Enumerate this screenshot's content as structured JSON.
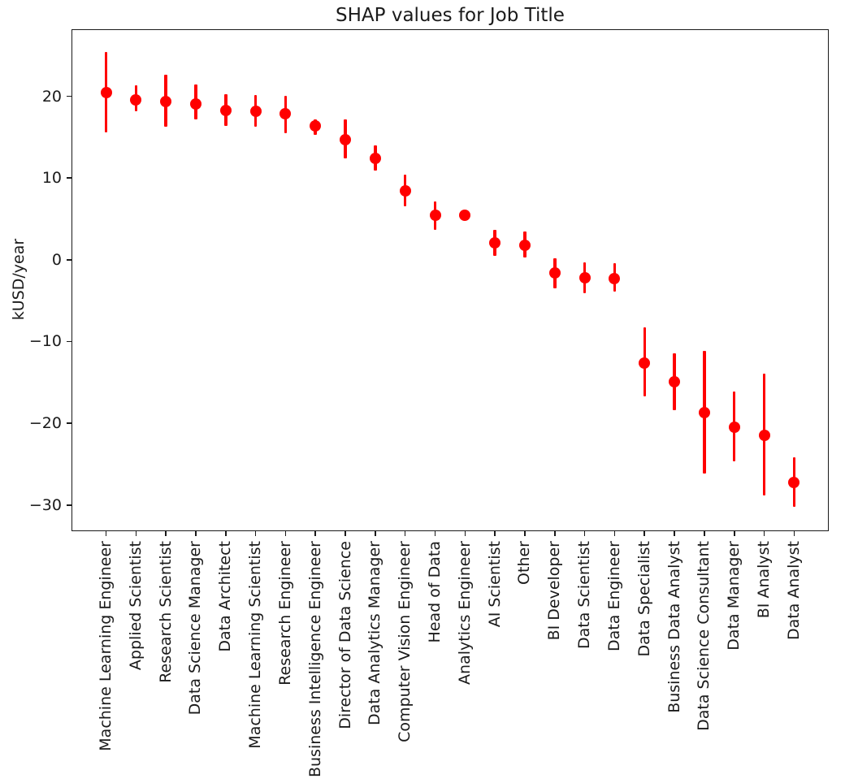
{
  "figure": {
    "background": "#ffffff",
    "axis_color": "#1a1a1a",
    "text_color": "#1a1a1a"
  },
  "chart_data": {
    "type": "scatter",
    "subtype": "errorbar-point-plot",
    "title": "SHAP values for Job Title",
    "xlabel": "",
    "ylabel": "kUSD/year",
    "grid": false,
    "legend_position": "none",
    "marker_color": "#ff0000",
    "marker_shape": "circle",
    "ylim": [
      -33.2,
      28.2
    ],
    "yticks": [
      20,
      10,
      0,
      -10,
      -20,
      -30
    ],
    "ytick_labels": [
      "20",
      "10",
      "0",
      "−10",
      "−20",
      "−30"
    ],
    "categories": [
      "Machine Learning Engineer",
      "Applied Scientist",
      "Research Scientist",
      "Data Science Manager",
      "Data Architect",
      "Machine Learning Scientist",
      "Research Engineer",
      "Business Intelligence Engineer",
      "Director of Data Science",
      "Data Analytics Manager",
      "Computer Vision Engineer",
      "Head of Data",
      "Analytics Engineer",
      "AI Scientist",
      "Other",
      "BI Developer",
      "Data Scientist",
      "Data Engineer",
      "Data Specialist",
      "Business Data Analyst",
      "Data Science Consultant",
      "Data Manager",
      "BI Analyst",
      "Data Analyst"
    ],
    "series": [
      {
        "name": "SHAP value (kUSD/year)",
        "values": [
          20.5,
          19.6,
          19.4,
          19.1,
          18.3,
          18.2,
          17.9,
          16.4,
          14.7,
          12.4,
          8.4,
          5.4,
          5.4,
          2.1,
          1.8,
          -1.6,
          -2.2,
          -2.3,
          -12.6,
          -14.9,
          -18.7,
          -20.5,
          -21.5,
          -27.2
        ],
        "err_low": [
          15.6,
          18.2,
          16.3,
          17.2,
          16.4,
          16.3,
          15.5,
          15.3,
          12.4,
          10.9,
          6.5,
          3.7,
          5.1,
          0.5,
          0.3,
          -3.5,
          -4.1,
          -3.9,
          -16.7,
          -18.4,
          -26.1,
          -24.7,
          -28.8,
          -30.2
        ],
        "err_high": [
          25.4,
          21.3,
          22.6,
          21.4,
          20.3,
          20.2,
          20.1,
          17.2,
          17.2,
          14.0,
          10.4,
          7.1,
          5.7,
          3.7,
          3.5,
          0.2,
          -0.3,
          -0.4,
          -8.3,
          -11.4,
          -11.1,
          -16.1,
          -13.9,
          -24.2
        ]
      }
    ]
  }
}
